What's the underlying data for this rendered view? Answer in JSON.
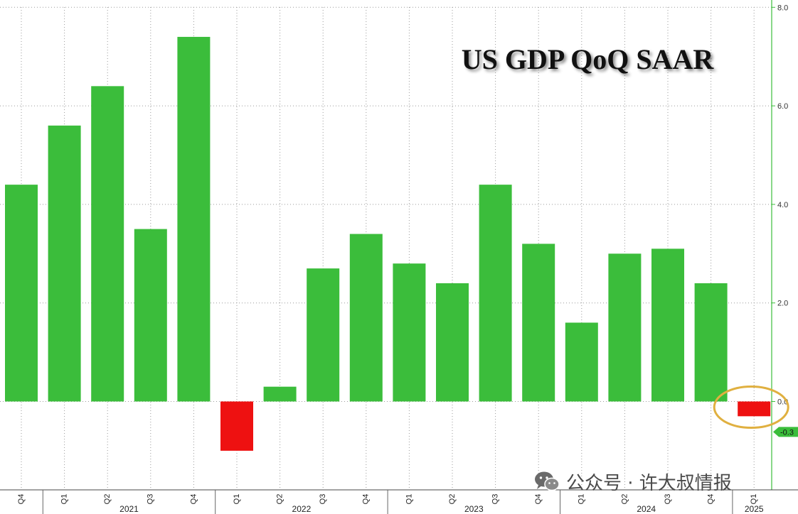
{
  "chart_data": {
    "type": "bar",
    "title": "US GDP QoQ SAAR",
    "categories": [
      "Q4",
      "Q1",
      "Q2",
      "Q3",
      "Q4",
      "Q1",
      "Q2",
      "Q3",
      "Q4",
      "Q1",
      "Q2",
      "Q3",
      "Q4",
      "Q1",
      "Q2",
      "Q3",
      "Q4",
      "Q1"
    ],
    "values": [
      4.4,
      5.6,
      6.4,
      3.5,
      7.4,
      -1.0,
      0.3,
      2.7,
      3.4,
      2.8,
      2.4,
      4.4,
      3.2,
      1.6,
      3.0,
      3.1,
      2.4,
      -0.3
    ],
    "years": [
      {
        "label": "2021",
        "start": 1,
        "end": 4
      },
      {
        "label": "2022",
        "start": 5,
        "end": 8
      },
      {
        "label": "2023",
        "start": 9,
        "end": 12
      },
      {
        "label": "2024",
        "start": 13,
        "end": 16
      },
      {
        "label": "2025",
        "start": 17,
        "end": 17
      }
    ],
    "ylim": [
      -1.8,
      8.0
    ],
    "yticks": [
      {
        "value": 8.0,
        "label": "8.0"
      },
      {
        "value": 6.0,
        "label": "6.0"
      },
      {
        "value": 4.0,
        "label": "4.0"
      },
      {
        "value": 2.0,
        "label": "2.0"
      },
      {
        "value": 0.0,
        "label": "0.0"
      }
    ],
    "last_value_label": "-0.3",
    "y_axis_position": "right",
    "grid": true,
    "colors": {
      "positive": "#3bbd3b",
      "negative": "#ee1111",
      "axis": "#3bbd3b",
      "highlight": "#e0b040"
    }
  },
  "watermark": {
    "text": "公众号 · 许大叔情报",
    "icon": "wechat-icon"
  }
}
